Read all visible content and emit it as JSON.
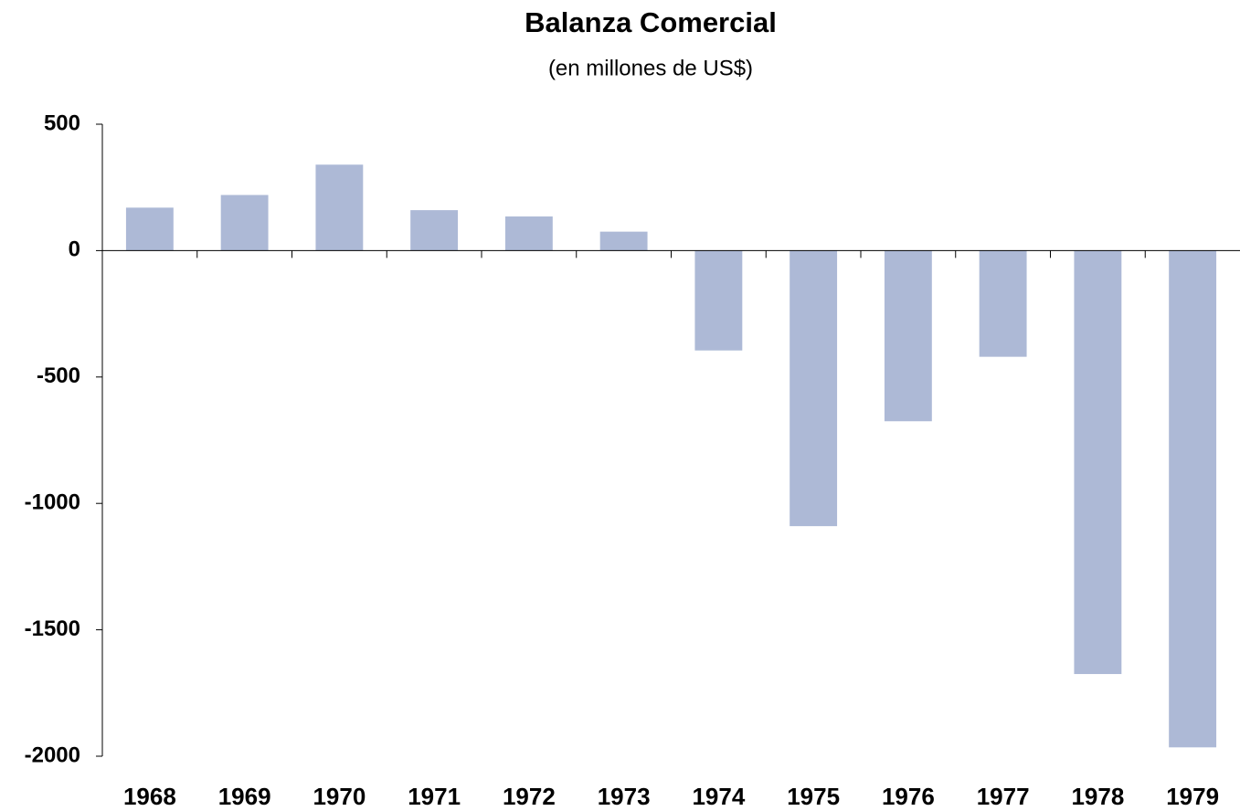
{
  "chart_data": {
    "type": "bar",
    "title": "Balanza Comercial",
    "subtitle": "(en millones de US$)",
    "categories": [
      "1968",
      "1969",
      "1970",
      "1971",
      "1972",
      "1973",
      "1974",
      "1975",
      "1976",
      "1977",
      "1978",
      "1979"
    ],
    "values": [
      170,
      220,
      340,
      160,
      135,
      75,
      -395,
      -1090,
      -675,
      -420,
      -1675,
      -1965
    ],
    "color": "#adb9d6",
    "ylim": [
      -2000,
      500
    ],
    "yticks": [
      500,
      0,
      -500,
      -1000,
      -1500,
      -2000
    ],
    "grid": false
  }
}
